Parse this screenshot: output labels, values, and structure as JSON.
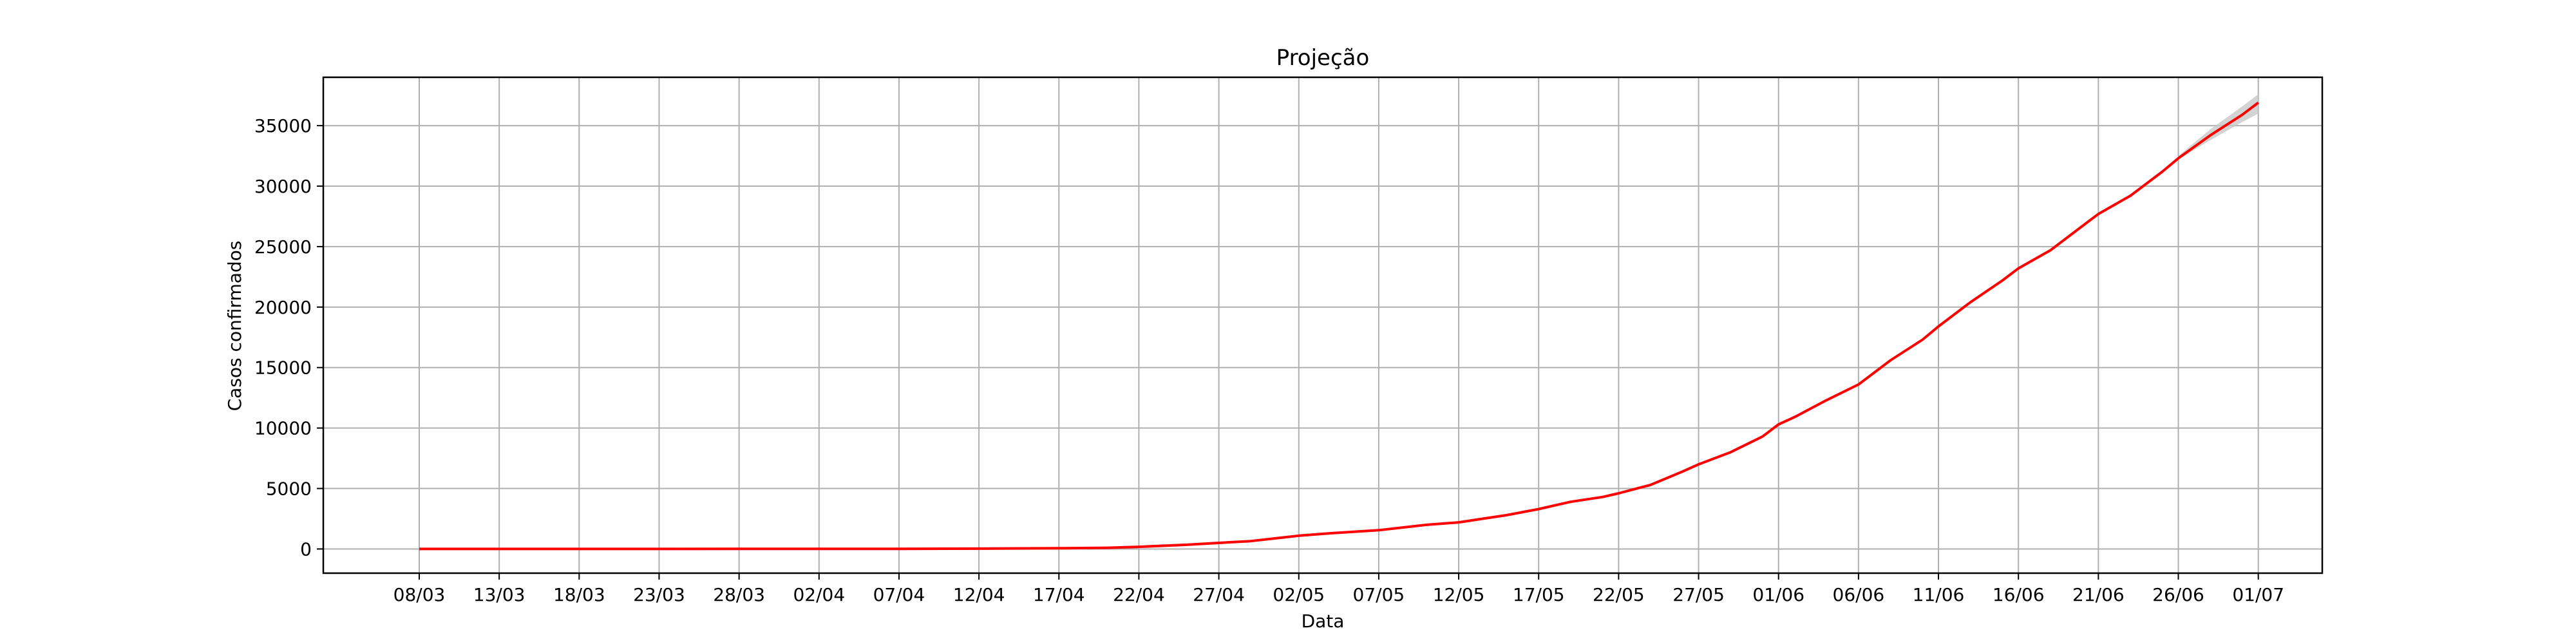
{
  "chart_data": {
    "type": "line",
    "title": "Projeção",
    "xlabel": "Data",
    "ylabel": "Casos confirmados",
    "grid": true,
    "legend": "none",
    "colors": {
      "line": "#ff0000",
      "band": "#c8c8c8",
      "grid": "#b0b0b0"
    },
    "xlim": [
      "2020-03-02",
      "2020-07-05"
    ],
    "ylim": [
      -2000,
      39000
    ],
    "x_ticks": [
      {
        "date": "2020-03-08",
        "label": "08/03"
      },
      {
        "date": "2020-03-13",
        "label": "13/03"
      },
      {
        "date": "2020-03-18",
        "label": "18/03"
      },
      {
        "date": "2020-03-23",
        "label": "23/03"
      },
      {
        "date": "2020-03-28",
        "label": "28/03"
      },
      {
        "date": "2020-04-02",
        "label": "02/04"
      },
      {
        "date": "2020-04-07",
        "label": "07/04"
      },
      {
        "date": "2020-04-12",
        "label": "12/04"
      },
      {
        "date": "2020-04-17",
        "label": "17/04"
      },
      {
        "date": "2020-04-22",
        "label": "22/04"
      },
      {
        "date": "2020-04-27",
        "label": "27/04"
      },
      {
        "date": "2020-05-02",
        "label": "02/05"
      },
      {
        "date": "2020-05-07",
        "label": "07/05"
      },
      {
        "date": "2020-05-12",
        "label": "12/05"
      },
      {
        "date": "2020-05-17",
        "label": "17/05"
      },
      {
        "date": "2020-05-22",
        "label": "22/05"
      },
      {
        "date": "2020-05-27",
        "label": "27/05"
      },
      {
        "date": "2020-06-01",
        "label": "01/06"
      },
      {
        "date": "2020-06-06",
        "label": "06/06"
      },
      {
        "date": "2020-06-11",
        "label": "11/06"
      },
      {
        "date": "2020-06-16",
        "label": "16/06"
      },
      {
        "date": "2020-06-21",
        "label": "21/06"
      },
      {
        "date": "2020-06-26",
        "label": "26/06"
      },
      {
        "date": "2020-07-01",
        "label": "01/07"
      }
    ],
    "y_ticks": [
      0,
      5000,
      10000,
      15000,
      20000,
      25000,
      30000,
      35000
    ],
    "series": [
      {
        "points": [
          [
            "2020-03-08",
            0
          ],
          [
            "2020-03-13",
            0
          ],
          [
            "2020-03-18",
            1
          ],
          [
            "2020-03-23",
            2
          ],
          [
            "2020-03-28",
            5
          ],
          [
            "2020-04-02",
            8
          ],
          [
            "2020-04-07",
            15
          ],
          [
            "2020-04-12",
            30
          ],
          [
            "2020-04-17",
            60
          ],
          [
            "2020-04-20",
            100
          ],
          [
            "2020-04-22",
            180
          ],
          [
            "2020-04-25",
            350
          ],
          [
            "2020-04-27",
            500
          ],
          [
            "2020-04-29",
            650
          ],
          [
            "2020-05-01",
            950
          ],
          [
            "2020-05-02",
            1100
          ],
          [
            "2020-05-04",
            1300
          ],
          [
            "2020-05-07",
            1550
          ],
          [
            "2020-05-10",
            2000
          ],
          [
            "2020-05-12",
            2200
          ],
          [
            "2020-05-15",
            2800
          ],
          [
            "2020-05-17",
            3300
          ],
          [
            "2020-05-19",
            3900
          ],
          [
            "2020-05-21",
            4300
          ],
          [
            "2020-05-22",
            4600
          ],
          [
            "2020-05-24",
            5300
          ],
          [
            "2020-05-26",
            6400
          ],
          [
            "2020-05-27",
            7000
          ],
          [
            "2020-05-29",
            8000
          ],
          [
            "2020-05-31",
            9300
          ],
          [
            "2020-06-01",
            10300
          ],
          [
            "2020-06-02",
            10900
          ],
          [
            "2020-06-04",
            12300
          ],
          [
            "2020-06-06",
            13600
          ],
          [
            "2020-06-08",
            15600
          ],
          [
            "2020-06-10",
            17300
          ],
          [
            "2020-06-11",
            18400
          ],
          [
            "2020-06-13",
            20400
          ],
          [
            "2020-06-15",
            22200
          ],
          [
            "2020-06-16",
            23200
          ],
          [
            "2020-06-18",
            24700
          ],
          [
            "2020-06-20",
            26700
          ],
          [
            "2020-06-21",
            27700
          ],
          [
            "2020-06-23",
            29200
          ],
          [
            "2020-06-25",
            31200
          ],
          [
            "2020-06-26",
            32300
          ],
          [
            "2020-06-28",
            34200
          ],
          [
            "2020-06-30",
            35900
          ],
          [
            "2020-07-01",
            36900
          ]
        ]
      }
    ],
    "confidence_band": [
      {
        "x": "2020-06-26",
        "lower": 32200,
        "upper": 32500
      },
      {
        "x": "2020-06-28",
        "lower": 33800,
        "upper": 34700
      },
      {
        "x": "2020-06-30",
        "lower": 35300,
        "upper": 36600
      },
      {
        "x": "2020-07-01",
        "lower": 36000,
        "upper": 37600
      }
    ]
  }
}
